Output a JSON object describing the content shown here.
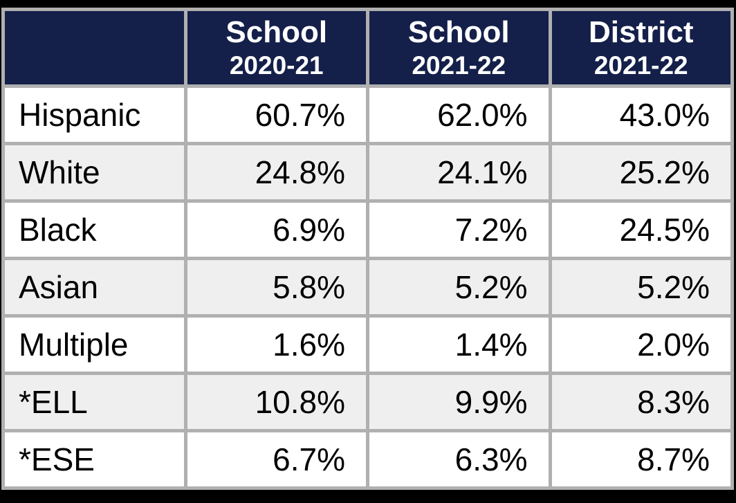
{
  "chart_data": {
    "type": "table",
    "column_headers": [
      {
        "line1": "School",
        "line2": "2020-21"
      },
      {
        "line1": "School",
        "line2": "2021-22"
      },
      {
        "line1": "District",
        "line2": "2021-22"
      }
    ],
    "corner_label": "",
    "rows": [
      {
        "label": "Hispanic",
        "values": [
          "60.7%",
          "62.0%",
          "43.0%"
        ]
      },
      {
        "label": "White",
        "values": [
          "24.8%",
          "24.1%",
          "25.2%"
        ]
      },
      {
        "label": "Black",
        "values": [
          "6.9%",
          "7.2%",
          "24.5%"
        ]
      },
      {
        "label": "Asian",
        "values": [
          "5.8%",
          "5.2%",
          "5.2%"
        ]
      },
      {
        "label": "Multiple",
        "values": [
          "1.6%",
          "1.4%",
          "2.0%"
        ]
      },
      {
        "label": "*ELL",
        "values": [
          "10.8%",
          "9.9%",
          "8.3%"
        ]
      },
      {
        "label": "*ESE",
        "values": [
          "6.7%",
          "6.3%",
          "8.7%"
        ]
      }
    ]
  },
  "colors": {
    "page_bg": "#000000",
    "header_bg": "#14204a",
    "header_text": "#ffffff",
    "row_bg": "#ffffff",
    "row_alt_bg": "#efefef",
    "grid": "#b0b0b0",
    "text": "#000000"
  }
}
